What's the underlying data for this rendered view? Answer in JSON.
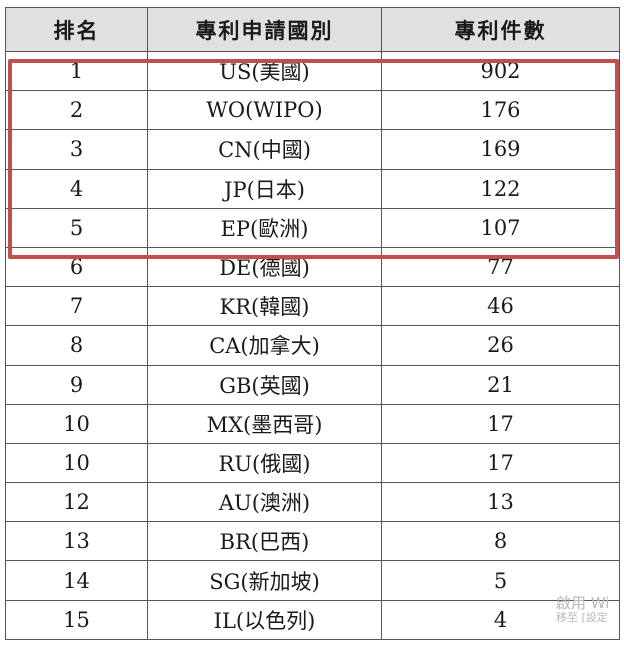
{
  "table": {
    "headers": [
      "排名",
      "專利申請國別",
      "專利件數"
    ],
    "rows": [
      [
        "1",
        "US(美國)",
        "902"
      ],
      [
        "2",
        "WO(WIPO)",
        "176"
      ],
      [
        "3",
        "CN(中國)",
        "169"
      ],
      [
        "4",
        "JP(日本)",
        "122"
      ],
      [
        "5",
        "EP(歐洲)",
        "107"
      ],
      [
        "6",
        "DE(德國)",
        "77"
      ],
      [
        "7",
        "KR(韓國)",
        "46"
      ],
      [
        "8",
        "CA(加拿大)",
        "26"
      ],
      [
        "9",
        "GB(英國)",
        "21"
      ],
      [
        "10",
        "MX(墨西哥)",
        "17"
      ],
      [
        "10",
        "RU(俄國)",
        "17"
      ],
      [
        "12",
        "AU(澳洲)",
        "13"
      ],
      [
        "13",
        "BR(巴西)",
        "8"
      ],
      [
        "14",
        "SG(新加坡)",
        "5"
      ],
      [
        "15",
        "IL(以色列)",
        "4"
      ]
    ],
    "highlighted_rows": 5
  },
  "colors": {
    "highlight": "#c0504d",
    "header_bg": "#e0e0e0",
    "border": "#555555"
  },
  "watermark": {
    "line1": "啟用 Wi",
    "line2": "移至 [設定"
  }
}
